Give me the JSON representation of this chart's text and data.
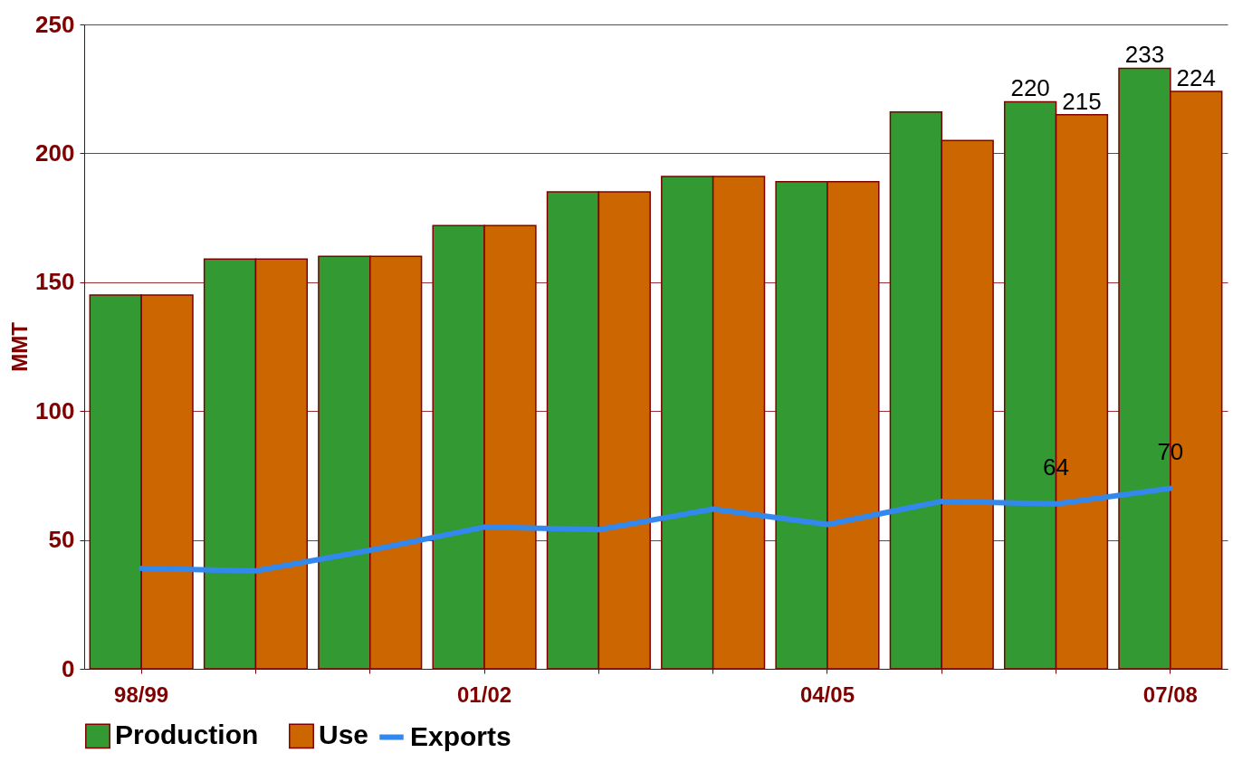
{
  "chart_data": {
    "type": "bar",
    "ylabel": "MMT",
    "categories": [
      "98/99",
      null,
      null,
      "01/02",
      null,
      null,
      "04/05",
      null,
      null,
      "07/08"
    ],
    "series": [
      {
        "name": "Production",
        "color": "#339933",
        "values": [
          145,
          159,
          160,
          172,
          185,
          191,
          189,
          216,
          220,
          233
        ],
        "value_labels": [
          null,
          null,
          null,
          null,
          null,
          null,
          null,
          null,
          "220",
          "233"
        ]
      },
      {
        "name": "Use",
        "color": "#cc6600",
        "values": [
          145,
          159,
          160,
          172,
          185,
          191,
          189,
          205,
          215,
          224
        ],
        "value_labels": [
          null,
          null,
          null,
          null,
          null,
          null,
          null,
          null,
          "215",
          "224"
        ]
      },
      {
        "name": "Exports",
        "type": "line",
        "color": "#3388ee",
        "values": [
          39,
          38,
          46,
          55,
          54,
          62,
          56,
          65,
          64,
          70
        ],
        "value_labels": [
          null,
          null,
          null,
          null,
          null,
          null,
          null,
          null,
          "64",
          "70"
        ]
      }
    ],
    "ylim": [
      0,
      250
    ],
    "yticks": [
      0,
      50,
      100,
      150,
      200,
      250
    ],
    "grid": "y",
    "legend": "bottom"
  }
}
